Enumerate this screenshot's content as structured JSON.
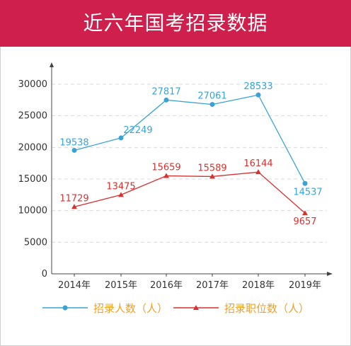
{
  "header": {
    "title": "近六年国考招录数据"
  },
  "colors": {
    "header_bg": "#cf1f4c",
    "series_1": "#3aa3d6",
    "series_2": "#d6322f",
    "legend_text": "#f0a020",
    "grid": "#d9d9d9"
  },
  "legend": {
    "items": [
      {
        "label": "招录人数（人）",
        "marker": "circle"
      },
      {
        "label": "招录职位数（人）",
        "marker": "triangle"
      }
    ]
  },
  "chart_data": {
    "type": "line",
    "title": "近六年国考招录数据",
    "categories": [
      "2014年",
      "2015年",
      "2016年",
      "2017年",
      "2018年",
      "2019年"
    ],
    "series": [
      {
        "name": "招录人数（人）",
        "values": [
          19538,
          22249,
          27817,
          27061,
          28533,
          14537
        ]
      },
      {
        "name": "招录职位数（人）",
        "values": [
          11729,
          13475,
          15659,
          15589,
          16144,
          9657
        ]
      }
    ],
    "series_plotted_values": [
      [
        19538,
        21500,
        27500,
        26800,
        28300,
        14300
      ],
      [
        10600,
        12500,
        15500,
        15400,
        16100,
        9600
      ]
    ],
    "yticks": [
      0,
      5000,
      10000,
      15000,
      20000,
      25000,
      30000
    ],
    "ylim": [
      0,
      33000
    ],
    "grid": true,
    "legend_position": "bottom"
  }
}
